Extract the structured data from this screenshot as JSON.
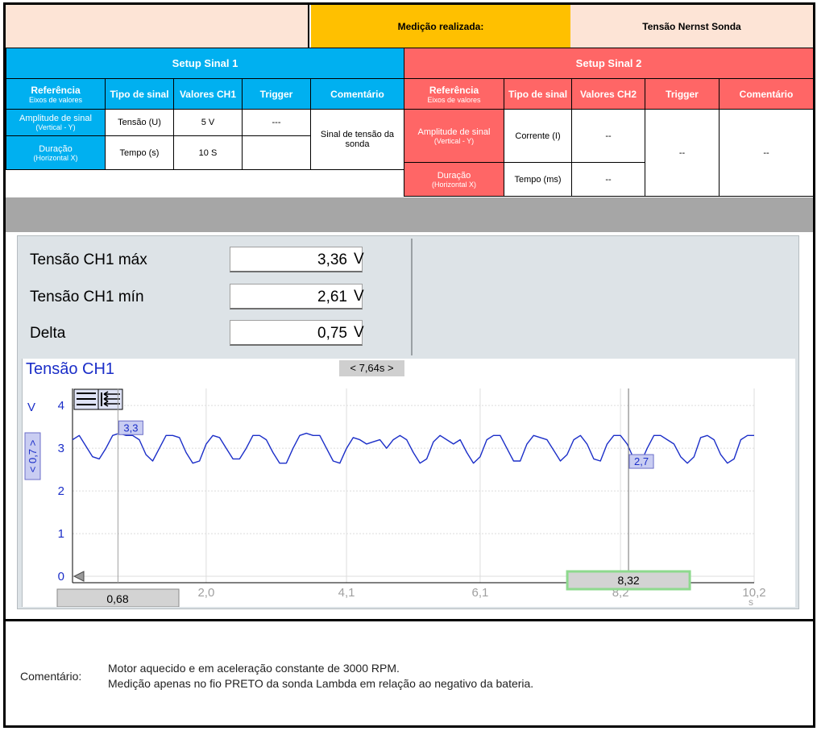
{
  "header": {
    "blank": "",
    "medicao_label": "Medição realizada:",
    "medicao_value": "Tensão Nernst Sonda"
  },
  "setup1": {
    "title": "Setup Sinal 1",
    "headers": [
      "Referência",
      "Eixos de valores",
      "Tipo de sinal",
      "Valores CH1",
      "Trigger",
      "Comentário"
    ],
    "row1": {
      "label": "Amplitude de sinal",
      "sub": "(Vertical - Y)",
      "tipo": "Tensão (U)",
      "valor": "5 V"
    },
    "row2": {
      "label": "Duração",
      "sub": "(Horizontal X)",
      "tipo": "Tempo (s)",
      "valor": "10 S"
    },
    "trigger": "---",
    "comentario": "Sinal de tensão da sonda"
  },
  "setup2": {
    "title": "Setup Sinal 2",
    "headers": [
      "Referência",
      "Eixos de valores",
      "Tipo de sinal",
      "Valores CH2",
      "Trigger",
      "Comentário"
    ],
    "row1": {
      "label": "Amplitude de sinal",
      "sub": "(Vertical - Y)",
      "tipo": "Corrente (I)",
      "valor": "--"
    },
    "row2": {
      "label": "Duração",
      "sub": "(Horizontal X)",
      "tipo": "Tempo (ms)",
      "valor": "--"
    },
    "trigger": "--",
    "comentario": "--"
  },
  "measurements": [
    {
      "label": "Tensão CH1 máx",
      "value": "3,36",
      "unit": "V"
    },
    {
      "label": "Tensão CH1 mín",
      "value": "2,61",
      "unit": "V"
    },
    {
      "label": "Delta",
      "value": "0,75",
      "unit": "V"
    }
  ],
  "chart": {
    "title": "Tensão CH1",
    "cursor_delta": "< 7,64s >",
    "y_unit": "V",
    "y_scale_label": "< 0,7 >",
    "cursor1_time": "0,68",
    "cursor2_time": "8,32",
    "cursor1_value": "3,3",
    "cursor2_value": "2,7",
    "x_unit": "s",
    "colors": {
      "trace": "#1b2ec8",
      "cursor2_box": "#8ed98e",
      "badge": "#c9cdf2"
    }
  },
  "chart_data": {
    "type": "line",
    "title": "Tensão CH1",
    "xlabel": "s",
    "ylabel": "V",
    "xlim": [
      0,
      10.2
    ],
    "ylim": [
      0,
      4
    ],
    "x_ticks": [
      "2,0",
      "4,1",
      "6,1",
      "8,2",
      "10,2"
    ],
    "y_ticks": [
      "0",
      "1",
      "2",
      "3",
      "4"
    ],
    "grid": true,
    "series": [
      {
        "x": [
          0.0,
          0.1,
          0.2,
          0.3,
          0.4,
          0.5,
          0.6,
          0.7,
          0.8,
          0.9,
          1.0,
          1.1,
          1.2,
          1.3,
          1.4,
          1.5,
          1.6,
          1.7,
          1.8,
          1.9,
          2.0,
          2.1,
          2.2,
          2.3,
          2.4,
          2.5,
          2.6,
          2.7,
          2.8,
          2.9,
          3.0,
          3.1,
          3.2,
          3.3,
          3.4,
          3.5,
          3.6,
          3.7,
          3.8,
          3.9,
          4.0,
          4.1,
          4.2,
          4.3,
          4.4,
          4.5,
          4.6,
          4.7,
          4.8,
          4.9,
          5.0,
          5.1,
          5.2,
          5.3,
          5.4,
          5.5,
          5.6,
          5.7,
          5.8,
          5.9,
          6.0,
          6.1,
          6.2,
          6.3,
          6.4,
          6.5,
          6.6,
          6.7,
          6.8,
          6.9,
          7.0,
          7.1,
          7.2,
          7.3,
          7.4,
          7.5,
          7.6,
          7.7,
          7.8,
          7.9,
          8.0,
          8.1,
          8.2,
          8.3,
          8.4,
          8.5,
          8.6,
          8.7,
          8.8,
          8.9,
          9.0,
          9.1,
          9.2,
          9.3,
          9.4,
          9.5,
          9.6,
          9.7,
          9.8,
          9.9,
          10.0,
          10.1,
          10.2
        ],
        "y": [
          3.2,
          3.3,
          3.05,
          2.8,
          2.75,
          3.0,
          3.3,
          3.35,
          3.3,
          3.3,
          3.2,
          2.85,
          2.7,
          3.0,
          3.3,
          3.3,
          3.25,
          2.9,
          2.65,
          2.7,
          3.1,
          3.3,
          3.25,
          3.0,
          2.75,
          2.75,
          3.0,
          3.3,
          3.3,
          3.2,
          2.9,
          2.65,
          2.65,
          3.0,
          3.3,
          3.35,
          3.3,
          3.3,
          3.0,
          2.7,
          2.65,
          3.0,
          3.25,
          3.2,
          3.1,
          3.15,
          3.2,
          3.0,
          3.2,
          3.3,
          3.2,
          2.9,
          2.65,
          2.75,
          3.15,
          3.3,
          3.2,
          3.1,
          3.2,
          2.9,
          2.65,
          2.8,
          3.2,
          3.3,
          3.3,
          3.0,
          2.7,
          2.7,
          3.1,
          3.3,
          3.25,
          3.2,
          2.95,
          2.7,
          2.85,
          3.2,
          3.3,
          3.1,
          2.75,
          2.7,
          3.1,
          3.3,
          3.3,
          3.1,
          2.75,
          2.65,
          3.0,
          3.3,
          3.3,
          3.2,
          3.1,
          2.8,
          2.65,
          2.8,
          3.25,
          3.3,
          3.2,
          2.85,
          2.65,
          2.75,
          3.2,
          3.3,
          3.3
        ]
      }
    ],
    "cursors": [
      {
        "x": 0.68,
        "y": 3.3
      },
      {
        "x": 8.32,
        "y": 2.7
      }
    ]
  },
  "comment": {
    "label": "Comentário:",
    "line1": "Motor aquecido e em aceleração constante de 3000 RPM.",
    "line2": "Medição apenas no fio PRETO da sonda Lambda em relação ao negativo da bateria."
  }
}
